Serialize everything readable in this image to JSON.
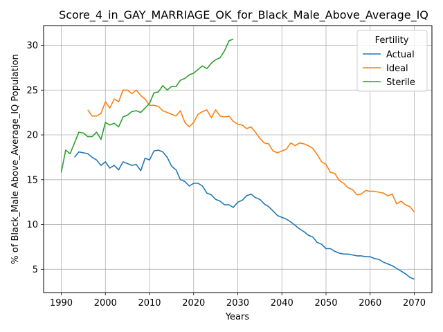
{
  "chart_data": {
    "type": "line",
    "title": "Score_4_in_GAY_MARRIAGE_OK_for_Black_Male_Above_Average_IQ",
    "xlabel": "Years",
    "ylabel": "% of Black_Male Above_Average_IQ Population",
    "xlim": [
      1986,
      2074
    ],
    "ylim": [
      2.4,
      32.2
    ],
    "xticks": [
      1990,
      2000,
      2010,
      2020,
      2030,
      2040,
      2050,
      2060,
      2070
    ],
    "yticks": [
      5,
      10,
      15,
      20,
      25,
      30
    ],
    "grid": true,
    "legend": {
      "title": "Fertility",
      "position": "top-right"
    },
    "series": [
      {
        "name": "Actual",
        "color": "#1f77b4",
        "x": [
          1993,
          1994,
          1995,
          1996,
          1997,
          1998,
          1999,
          2000,
          2001,
          2002,
          2003,
          2004,
          2005,
          2006,
          2007,
          2008,
          2009,
          2010,
          2011,
          2012,
          2013,
          2014,
          2015,
          2016,
          2017,
          2018,
          2019,
          2020,
          2021,
          2022,
          2023,
          2024,
          2025,
          2026,
          2027,
          2028,
          2029,
          2030,
          2031,
          2032,
          2033,
          2034,
          2035,
          2036,
          2037,
          2038,
          2039,
          2040,
          2041,
          2042,
          2043,
          2044,
          2045,
          2046,
          2047,
          2048,
          2049,
          2050,
          2051,
          2052,
          2053,
          2054,
          2055,
          2056,
          2057,
          2058,
          2059,
          2060,
          2061,
          2062,
          2063,
          2064,
          2065,
          2066,
          2067,
          2068,
          2069,
          2070
        ],
        "y": [
          17.5,
          18.1,
          18.0,
          17.9,
          17.5,
          17.2,
          16.6,
          17.0,
          16.3,
          16.6,
          16.1,
          17.0,
          16.8,
          16.6,
          16.7,
          16.0,
          17.4,
          17.2,
          18.2,
          18.3,
          18.1,
          17.5,
          16.5,
          16.1,
          15.0,
          14.8,
          14.3,
          14.6,
          14.6,
          14.3,
          13.5,
          13.3,
          12.8,
          12.6,
          12.2,
          12.2,
          11.9,
          12.5,
          12.7,
          13.2,
          13.4,
          13.0,
          12.8,
          12.3,
          12.0,
          11.5,
          11.0,
          10.8,
          10.6,
          10.3,
          9.9,
          9.5,
          9.2,
          8.8,
          8.6,
          8.0,
          7.8,
          7.3,
          7.3,
          7.0,
          6.8,
          6.7,
          6.7,
          6.6,
          6.5,
          6.5,
          6.4,
          6.4,
          6.2,
          6.1,
          5.8,
          5.6,
          5.4,
          5.1,
          4.8,
          4.5,
          4.1,
          3.9
        ]
      },
      {
        "name": "Ideal",
        "color": "#ff7f0e",
        "x": [
          1996,
          1997,
          1998,
          1999,
          2000,
          2001,
          2002,
          2003,
          2004,
          2005,
          2006,
          2007,
          2008,
          2009,
          2010,
          2011,
          2012,
          2013,
          2014,
          2015,
          2016,
          2017,
          2018,
          2019,
          2020,
          2021,
          2022,
          2023,
          2024,
          2025,
          2026,
          2027,
          2028,
          2029,
          2030,
          2031,
          2032,
          2033,
          2034,
          2035,
          2036,
          2037,
          2038,
          2039,
          2040,
          2041,
          2042,
          2043,
          2044,
          2045,
          2046,
          2047,
          2048,
          2049,
          2050,
          2051,
          2052,
          2053,
          2054,
          2055,
          2056,
          2057,
          2058,
          2059,
          2060,
          2061,
          2062,
          2063,
          2064,
          2065,
          2066,
          2067,
          2068,
          2069,
          2070
        ],
        "y": [
          22.8,
          22.1,
          22.1,
          22.4,
          23.7,
          23.0,
          24.0,
          23.7,
          25.0,
          25.0,
          24.6,
          25.0,
          24.4,
          24.0,
          23.3,
          23.3,
          23.2,
          22.7,
          22.5,
          22.3,
          22.1,
          22.7,
          21.4,
          20.9,
          21.4,
          22.3,
          22.6,
          22.8,
          21.9,
          22.8,
          22.1,
          22.0,
          22.1,
          21.5,
          21.2,
          21.1,
          20.7,
          20.9,
          20.3,
          19.6,
          19.1,
          19.0,
          18.2,
          18.0,
          18.2,
          18.4,
          19.1,
          18.8,
          19.1,
          19.0,
          18.8,
          18.5,
          17.8,
          17.0,
          16.7,
          15.8,
          15.7,
          14.9,
          14.6,
          14.1,
          13.9,
          13.3,
          13.4,
          13.8,
          13.7,
          13.7,
          13.6,
          13.5,
          13.2,
          13.4,
          12.3,
          12.6,
          12.2,
          12.0,
          11.4
        ]
      },
      {
        "name": "Sterile",
        "color": "#2ca02c",
        "x": [
          1990,
          1991,
          1992,
          1993,
          1994,
          1995,
          1996,
          1997,
          1998,
          1999,
          2000,
          2001,
          2002,
          2003,
          2004,
          2005,
          2006,
          2007,
          2008,
          2009,
          2010,
          2011,
          2012,
          2013,
          2014,
          2015,
          2016,
          2017,
          2018,
          2019,
          2020,
          2021,
          2022,
          2023,
          2024,
          2025,
          2026,
          2027,
          2028,
          2029
        ],
        "y": [
          15.8,
          18.3,
          17.9,
          19.1,
          20.3,
          20.2,
          19.8,
          19.8,
          20.3,
          19.5,
          21.4,
          21.1,
          21.3,
          20.9,
          22.0,
          22.2,
          22.6,
          22.7,
          22.5,
          23.0,
          23.5,
          24.7,
          24.8,
          25.5,
          25.0,
          25.4,
          25.4,
          26.1,
          26.3,
          26.7,
          26.9,
          27.3,
          27.7,
          27.4,
          28.0,
          28.4,
          28.6,
          29.4,
          30.5,
          30.7
        ]
      }
    ]
  }
}
